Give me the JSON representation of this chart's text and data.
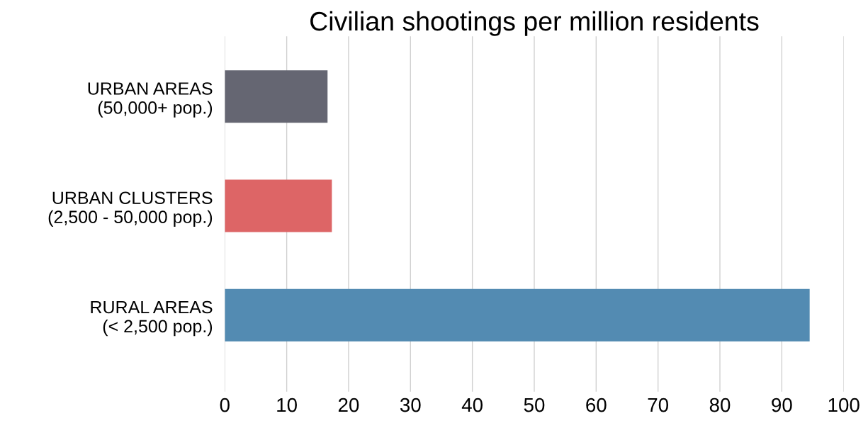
{
  "chart_data": {
    "type": "bar",
    "orientation": "horizontal",
    "title": "Civilian shootings per million residents",
    "categories": [
      "URBAN AREAS\n(50,000+ pop.)",
      "URBAN CLUSTERS\n(2,500 - 50,000 pop.)",
      "RURAL AREAS\n(< 2,500 pop.)"
    ],
    "values": [
      16.6,
      17.3,
      94.5
    ],
    "colors": [
      "#656672",
      "#dd6566",
      "#538bb2"
    ],
    "xlim": [
      0,
      100
    ],
    "xticks": [
      0,
      10,
      20,
      30,
      40,
      50,
      60,
      70,
      80,
      90,
      100
    ],
    "grid": "x"
  }
}
